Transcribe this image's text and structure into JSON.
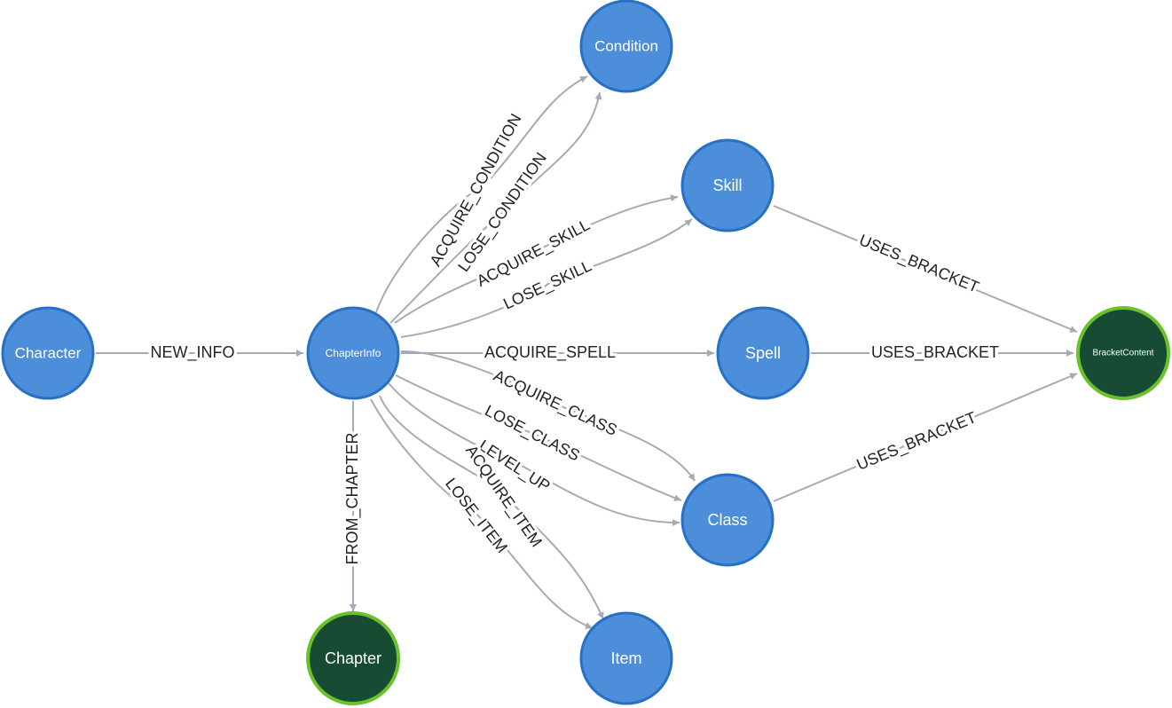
{
  "colors": {
    "node_blue_fill": "#4c8eda",
    "node_blue_stroke": "#2870c2",
    "node_green_fill": "#174b33",
    "node_green_stroke": "#6ac22a",
    "edge": "#a5abb6"
  },
  "nodes": {
    "character": {
      "label": "Character"
    },
    "chapterinfo": {
      "label": "ChapterInfo"
    },
    "chapter": {
      "label": "Chapter"
    },
    "condition": {
      "label": "Condition"
    },
    "skill": {
      "label": "Skill"
    },
    "spell": {
      "label": "Spell"
    },
    "class": {
      "label": "Class"
    },
    "item": {
      "label": "Item"
    },
    "bracketcontent": {
      "label": "BracketContent"
    }
  },
  "edges": {
    "new_info": "NEW_INFO",
    "from_chapter": "FROM_CHAPTER",
    "acquire_condition": "ACQUIRE_CONDITION",
    "lose_condition": "LOSE_CONDITION",
    "acquire_skill": "ACQUIRE_SKILL",
    "lose_skill": "LOSE_SKILL",
    "acquire_spell": "ACQUIRE_SPELL",
    "acquire_class": "ACQUIRE_CLASS",
    "lose_class": "LOSE_CLASS",
    "level_up": "LEVEL_UP",
    "acquire_item": "ACQUIRE_ITEM",
    "lose_item": "LOSE_ITEM",
    "skill_uses_bracket": "USES_BRACKET",
    "spell_uses_bracket": "USES_BRACKET",
    "class_uses_bracket": "USES_BRACKET"
  }
}
